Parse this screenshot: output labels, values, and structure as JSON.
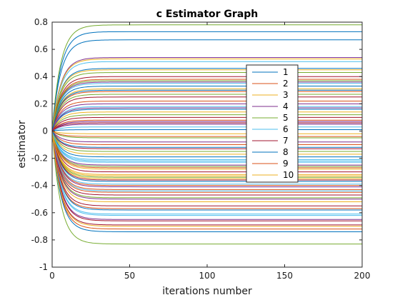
{
  "chart_data": {
    "type": "line",
    "title": "c Estimator Graph",
    "xlabel": "iterations number",
    "ylabel": "estimator",
    "xlim": [
      0,
      200
    ],
    "ylim": [
      -1,
      0.8
    ],
    "xticks": [
      0,
      50,
      100,
      150,
      200
    ],
    "yticks": [
      -1,
      -0.8,
      -0.6,
      -0.4,
      -0.2,
      0,
      0.2,
      0.4,
      0.6,
      0.8
    ],
    "grid": false,
    "legend_position": "right",
    "curve_model": "each series starts at 0 at iteration 0 and saturates at its final value by about iteration 25",
    "palette": [
      "#0072bd",
      "#d95319",
      "#edb120",
      "#7e2f8e",
      "#77ac30",
      "#4dbeee",
      "#a2142f"
    ],
    "series": [
      {
        "name": "1",
        "final": 0.73
      },
      {
        "name": "2",
        "final": -0.45
      },
      {
        "name": "3",
        "final": -0.32
      },
      {
        "name": "4",
        "final": 0.07
      },
      {
        "name": "5",
        "final": 0.78
      },
      {
        "name": "6",
        "final": -0.21
      },
      {
        "name": "7",
        "final": -0.55
      },
      {
        "name": "8",
        "final": 0.67
      },
      {
        "name": "9",
        "final": 0.29
      },
      {
        "name": "10",
        "final": -0.28
      },
      {
        "final": 0.54
      },
      {
        "final": -0.83
      },
      {
        "final": 0.51
      },
      {
        "final": -0.69
      },
      {
        "final": 0.46
      },
      {
        "final": -0.72
      },
      {
        "final": 0.45
      },
      {
        "final": -0.65
      },
      {
        "final": 0.43
      },
      {
        "final": -0.61
      },
      {
        "final": 0.4
      },
      {
        "final": -0.58
      },
      {
        "final": 0.38
      },
      {
        "final": -0.52
      },
      {
        "final": 0.36
      },
      {
        "final": -0.49
      },
      {
        "final": 0.35
      },
      {
        "final": -0.47
      },
      {
        "final": 0.33
      },
      {
        "final": -0.43
      },
      {
        "final": 0.31
      },
      {
        "final": -0.41
      },
      {
        "final": 0.27
      },
      {
        "final": -0.39
      },
      {
        "final": 0.25
      },
      {
        "final": -0.37
      },
      {
        "final": 0.22
      },
      {
        "final": -0.35
      },
      {
        "final": 0.2
      },
      {
        "final": -0.34
      },
      {
        "final": 0.18
      },
      {
        "final": -0.3
      },
      {
        "final": 0.16
      },
      {
        "final": -0.27
      },
      {
        "final": 0.14
      },
      {
        "final": -0.25
      },
      {
        "final": 0.12
      },
      {
        "final": -0.23
      },
      {
        "final": 0.1
      },
      {
        "final": -0.19
      },
      {
        "final": 0.08
      },
      {
        "final": -0.17
      },
      {
        "final": 0.05
      },
      {
        "final": -0.15
      },
      {
        "final": 0.03
      },
      {
        "final": -0.13
      },
      {
        "final": 0.01
      },
      {
        "final": -0.1
      },
      {
        "final": -0.02
      },
      {
        "final": -0.08
      },
      {
        "final": -0.05
      },
      {
        "final": -0.62
      },
      {
        "final": -0.66
      },
      {
        "final": -0.74
      },
      {
        "final": -0.57
      },
      {
        "final": 0.53
      },
      {
        "final": -0.5
      },
      {
        "final": 0.37
      },
      {
        "final": -0.44
      },
      {
        "final": -0.36
      },
      {
        "final": 0.3
      },
      {
        "final": -0.4
      },
      {
        "final": -0.33
      },
      {
        "final": 0.17
      },
      {
        "final": -0.26
      },
      {
        "final": -0.22
      },
      {
        "final": 0.06
      },
      {
        "final": -0.12
      },
      {
        "final": -0.04
      },
      {
        "final": -0.7
      }
    ]
  }
}
